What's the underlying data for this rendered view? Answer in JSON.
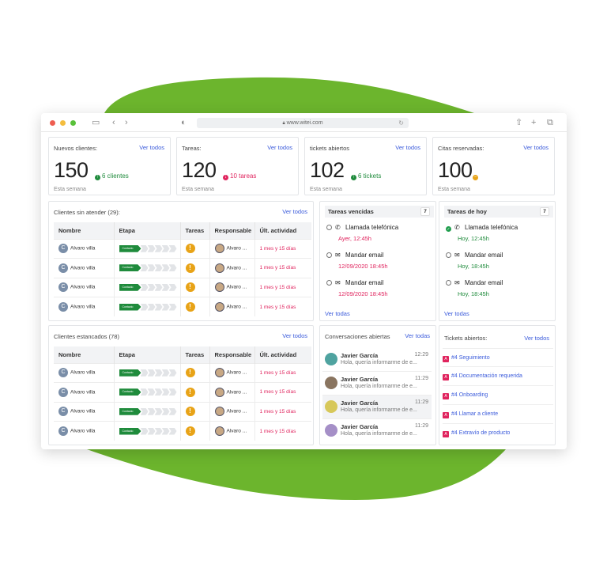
{
  "colors": {
    "green_blob": "#6cb52d",
    "accent": "#3b5bdb",
    "late": "#e0245e",
    "ok": "#1f8b3c",
    "warn": "#e8a317"
  },
  "browser": {
    "url": "www.witei.com",
    "icons": [
      "sidebar-icon",
      "back-icon",
      "forward-icon",
      "shield-icon",
      "lock-icon",
      "reload-icon",
      "share-icon",
      "new-tab-icon",
      "tabs-icon"
    ]
  },
  "stats": [
    {
      "title": "Nuevos clientes:",
      "link": "Ver todos",
      "value": "150",
      "delta": "6 clientes",
      "week": "Esta semana"
    },
    {
      "title": "Tareas:",
      "link": "Ver todos",
      "value": "120",
      "delta": "10 tareas",
      "week": "Esta semana"
    },
    {
      "title": "tickets abiertos",
      "link": "Ver todos",
      "value": "102",
      "delta": "6 tickets",
      "week": "Esta semana"
    },
    {
      "title": "Citas reservadas:",
      "link": "Ver todos",
      "value": "100",
      "delta": "",
      "week": "Esta semana"
    }
  ],
  "table_headers": [
    "Nombre",
    "Etapa",
    "Tareas",
    "Responsable",
    "Últ. actividad"
  ],
  "unattended": {
    "title": "Clientes sin atender (29):",
    "link": "Ver todos",
    "rows": [
      {
        "name": "Alvaro villa",
        "stage": "Contacto",
        "owner": "Alvaro ...",
        "activity": "1 mes y 15 días"
      },
      {
        "name": "Alvaro villa",
        "stage": "Contacto",
        "owner": "Alvaro ...",
        "activity": "1 mes y 15 días"
      },
      {
        "name": "Alvaro villa",
        "stage": "Contacto",
        "owner": "Alvaro ...",
        "activity": "1 mes y 15 días"
      },
      {
        "name": "Alvaro villa",
        "stage": "Contacto",
        "owner": "Alvaro ...",
        "activity": "1 mes y 15 días"
      }
    ]
  },
  "stalled": {
    "title": "Clientes estancados (78)",
    "link": "Ver todos",
    "rows": [
      {
        "name": "Alvaro villa",
        "stage": "Contacto",
        "owner": "Alvaro ...",
        "activity": "1 mes y 15 días"
      },
      {
        "name": "Alvaro villa",
        "stage": "Contacto",
        "owner": "Alvaro ...",
        "activity": "1 mes y 15 días"
      },
      {
        "name": "Alvaro villa",
        "stage": "Contacto",
        "owner": "Alvaro ...",
        "activity": "1 mes y 15 días"
      },
      {
        "name": "Alvaro villa",
        "stage": "Contacto",
        "owner": "Alvaro ...",
        "activity": "1 mes y 15 días"
      }
    ]
  },
  "overdue": {
    "title": "Tareas vencidas",
    "count": "7",
    "link": "Ver todas",
    "items": [
      {
        "label": "Llamada telefónica",
        "when": "Ayer, 12:45h"
      },
      {
        "label": "Mandar email",
        "when": "12/09/2020 18:45h"
      },
      {
        "label": "Mandar email",
        "when": "12/09/2020 18:45h"
      }
    ]
  },
  "today": {
    "title": "Tareas de hoy",
    "count": "7",
    "link": "Ver todas",
    "items": [
      {
        "label": "Llamada telefónica",
        "when": "Hoy, 12:45h"
      },
      {
        "label": "Mandar email",
        "when": "Hoy, 18:45h"
      },
      {
        "label": "Mandar email",
        "when": "Hoy, 18:45h"
      }
    ]
  },
  "conversations": {
    "title": "Conversaciones abiertas",
    "link": "Ver todas",
    "items": [
      {
        "name": "Javier García",
        "time": "12:29",
        "msg": "Hola, quería informarme de e..."
      },
      {
        "name": "Javier García",
        "time": "11:29",
        "msg": "Hola, quería informarme de e..."
      },
      {
        "name": "Javier García",
        "time": "11:29",
        "msg": "Hola, quería informarme de e..."
      },
      {
        "name": "Javier García",
        "time": "11:29",
        "msg": "Hola, quería informarme de e..."
      }
    ]
  },
  "tickets": {
    "title": "Tickets abiertos:",
    "link": "Ver todos",
    "tag": "A",
    "items": [
      "#4 Seguimiento",
      "#4 Documentación requerida",
      "#4 Onboarding",
      "#4 Llamar a cliente",
      "#4 Extravío de producto"
    ]
  }
}
